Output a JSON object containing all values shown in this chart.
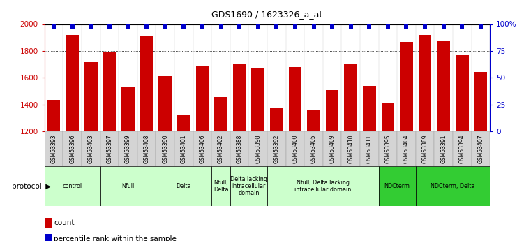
{
  "title": "GDS1690 / 1623326_a_at",
  "samples": [
    "GSM53393",
    "GSM53396",
    "GSM53403",
    "GSM53397",
    "GSM53399",
    "GSM53408",
    "GSM53390",
    "GSM53401",
    "GSM53406",
    "GSM53402",
    "GSM53388",
    "GSM53398",
    "GSM53392",
    "GSM53400",
    "GSM53405",
    "GSM53409",
    "GSM53410",
    "GSM53411",
    "GSM53395",
    "GSM53404",
    "GSM53389",
    "GSM53391",
    "GSM53394",
    "GSM53407"
  ],
  "counts": [
    1435,
    1920,
    1715,
    1790,
    1530,
    1910,
    1610,
    1320,
    1685,
    1455,
    1705,
    1670,
    1370,
    1680,
    1360,
    1510,
    1705,
    1540,
    1410,
    1865,
    1920,
    1875,
    1770,
    1645
  ],
  "bar_color": "#cc0000",
  "dot_color": "#0000cc",
  "ylim": [
    1200,
    2000
  ],
  "yticks": [
    1200,
    1400,
    1600,
    1800,
    2000
  ],
  "right_yticks": [
    0,
    25,
    50,
    75,
    100
  ],
  "right_ylim": [
    0,
    100
  ],
  "grid_lines": [
    1400,
    1600,
    1800
  ],
  "protocols": [
    {
      "label": "control",
      "start": 0,
      "end": 3,
      "color": "#ccffcc"
    },
    {
      "label": "Nfull",
      "start": 3,
      "end": 6,
      "color": "#ccffcc"
    },
    {
      "label": "Delta",
      "start": 6,
      "end": 9,
      "color": "#ccffcc"
    },
    {
      "label": "Nfull,\nDelta",
      "start": 9,
      "end": 10,
      "color": "#ccffcc"
    },
    {
      "label": "Delta lacking\nintracellular\ndomain",
      "start": 10,
      "end": 12,
      "color": "#ccffcc"
    },
    {
      "label": "Nfull, Delta lacking\nintracellular domain",
      "start": 12,
      "end": 18,
      "color": "#ccffcc"
    },
    {
      "label": "NDCterm",
      "start": 18,
      "end": 20,
      "color": "#33cc33"
    },
    {
      "label": "NDCterm, Delta",
      "start": 20,
      "end": 24,
      "color": "#33cc33"
    }
  ],
  "legend_count_label": "count",
  "legend_pct_label": "percentile rank within the sample",
  "protocol_label": "protocol"
}
